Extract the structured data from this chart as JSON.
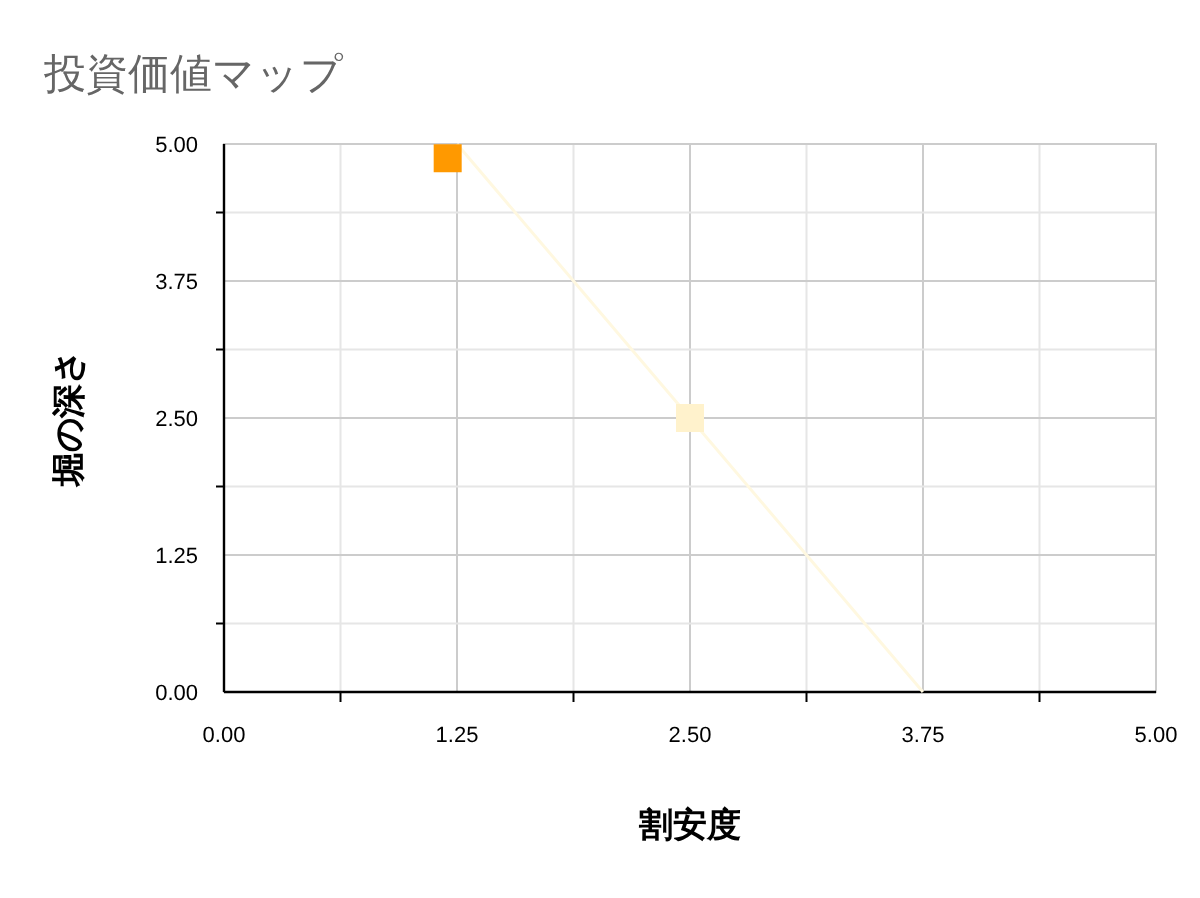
{
  "chart_data": {
    "type": "scatter",
    "title": "投資価値マップ",
    "xlabel": "割安度",
    "ylabel": "堀の深さ",
    "xlim": [
      0,
      5
    ],
    "ylim": [
      0,
      5
    ],
    "xticks": [
      {
        "value": 0,
        "label": "0.00"
      },
      {
        "value": 0.625,
        "label": null
      },
      {
        "value": 1.25,
        "label": "1.25"
      },
      {
        "value": 1.875,
        "label": null
      },
      {
        "value": 2.5,
        "label": "2.50"
      },
      {
        "value": 3.125,
        "label": null
      },
      {
        "value": 3.75,
        "label": "3.75"
      },
      {
        "value": 4.375,
        "label": null
      },
      {
        "value": 5,
        "label": "5.00"
      }
    ],
    "yticks": [
      {
        "value": 0,
        "label": "0.00"
      },
      {
        "value": 0.625,
        "label": null
      },
      {
        "value": 1.25,
        "label": "1.25"
      },
      {
        "value": 1.875,
        "label": null
      },
      {
        "value": 2.5,
        "label": "2.50"
      },
      {
        "value": 3.125,
        "label": null
      },
      {
        "value": 3.75,
        "label": "3.75"
      },
      {
        "value": 4.375,
        "label": null
      },
      {
        "value": 5,
        "label": "5.00"
      }
    ],
    "grid": true,
    "marker": "square",
    "series": [
      {
        "type": "line",
        "marker": "none",
        "color": "#fff8e0",
        "x": [
          1.25,
          2.5,
          3.75
        ],
        "values": [
          5,
          2.5,
          0
        ]
      },
      {
        "color": "#ff9900",
        "x": [
          1.2
        ],
        "values": [
          4.87
        ]
      },
      {
        "color": "#fff2cc",
        "x": [
          2.5
        ],
        "values": [
          2.5
        ]
      }
    ]
  }
}
